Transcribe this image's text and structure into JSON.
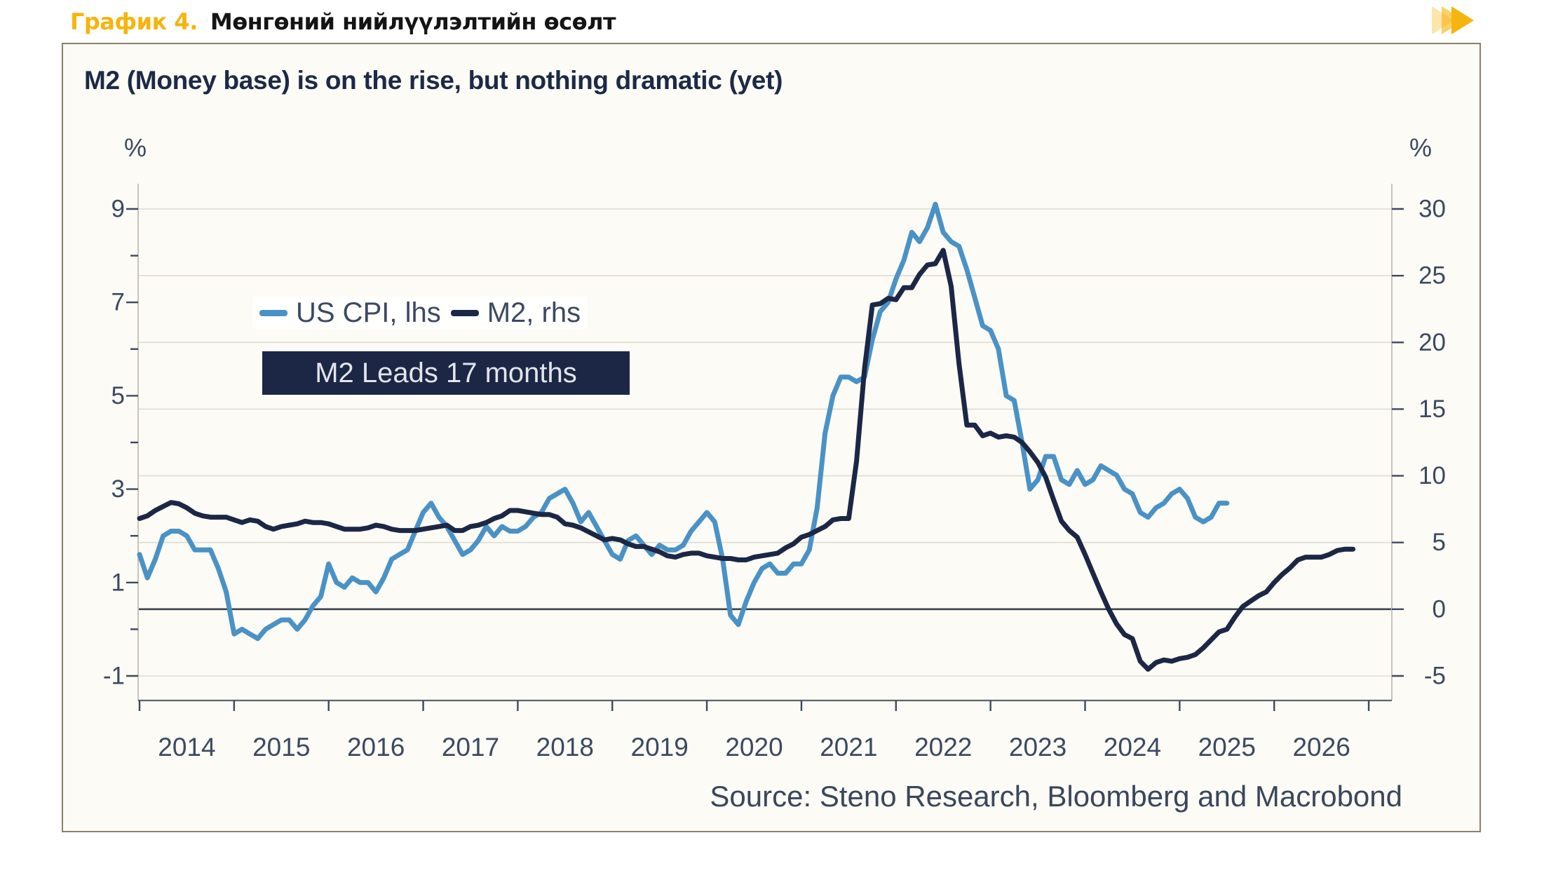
{
  "header": {
    "tag": "График 4.",
    "title": "Мөнгөний нийлүүлэлтийн өсөлт",
    "tag_color": "#F6B40E"
  },
  "panel": {
    "border_color": "#8A8069",
    "background": "#FCFBF5"
  },
  "chart": {
    "title": "M2 (Money base) is on the rise, but nothing dramatic (yet)",
    "left_axis": {
      "unit": "%",
      "labeled_ticks": [
        9,
        7,
        5,
        3,
        1,
        -1
      ],
      "minor_ticks": [
        8,
        6,
        4,
        2,
        0
      ]
    },
    "right_axis": {
      "unit": "%",
      "labeled_ticks": [
        30,
        25,
        20,
        15,
        10,
        5,
        0,
        -5
      ]
    },
    "x_axis": {
      "year_labels": [
        "2014",
        "2015",
        "2016",
        "2017",
        "2018",
        "2019",
        "2020",
        "2021",
        "2022",
        "2023",
        "2024",
        "2025",
        "2026"
      ]
    },
    "legend": {
      "items": [
        {
          "label": "US CPI, lhs",
          "color": "#4A92C5"
        },
        {
          "label": "M2, rhs",
          "color": "#1C2746"
        }
      ]
    },
    "annotation": "M2 Leads 17 months",
    "source": "Source: Steno Research, Bloomberg and Macrobond",
    "colors": {
      "gridline": "#DEDCD2",
      "zero_line": "#39434D",
      "axis_line": "#C6C4BB",
      "bottom_axis_line": "#5C6570",
      "tick": "#3B4961",
      "axis_text": "#3B4961"
    }
  },
  "chart_data": {
    "type": "line",
    "title": "M2 (Money base) is on the rise, but nothing dramatic (yet)",
    "x_start": "2014-01",
    "x_end": "2027-01",
    "frequency": "monthly",
    "left_ylim": [
      -1.5,
      9.5
    ],
    "right_ylim": [
      -6.8,
      31.8
    ],
    "axis_alignment": {
      "lhs_9_equals_rhs": 30,
      "lhs_minus1_equals_rhs": -5
    },
    "grid": "horizontal, at right-axis ticks every 5",
    "legend_position": "upper-left inside plot",
    "series": [
      {
        "name": "US CPI, lhs",
        "axis": "left",
        "color": "#4A92C5",
        "start": "2014-01",
        "values": [
          1.6,
          1.1,
          1.5,
          2.0,
          2.1,
          2.1,
          2.0,
          1.7,
          1.7,
          1.7,
          1.3,
          0.8,
          -0.1,
          0.0,
          -0.1,
          -0.2,
          0.0,
          0.1,
          0.2,
          0.2,
          0.0,
          0.2,
          0.5,
          0.7,
          1.4,
          1.0,
          0.9,
          1.1,
          1.0,
          1.0,
          0.8,
          1.1,
          1.5,
          1.6,
          1.7,
          2.1,
          2.5,
          2.7,
          2.4,
          2.2,
          1.9,
          1.6,
          1.7,
          1.9,
          2.2,
          2.0,
          2.2,
          2.1,
          2.1,
          2.2,
          2.4,
          2.5,
          2.8,
          2.9,
          3.0,
          2.7,
          2.3,
          2.5,
          2.2,
          1.9,
          1.6,
          1.5,
          1.9,
          2.0,
          1.8,
          1.6,
          1.8,
          1.7,
          1.7,
          1.8,
          2.1,
          2.3,
          2.5,
          2.3,
          1.5,
          0.3,
          0.1,
          0.6,
          1.0,
          1.3,
          1.4,
          1.2,
          1.2,
          1.4,
          1.4,
          1.7,
          2.6,
          4.2,
          5.0,
          5.4,
          5.4,
          5.3,
          5.4,
          6.2,
          6.8,
          7.0,
          7.5,
          7.9,
          8.5,
          8.3,
          8.6,
          9.1,
          8.5,
          8.3,
          8.2,
          7.7,
          7.1,
          6.5,
          6.4,
          6.0,
          5.0,
          4.9,
          4.0,
          3.0,
          3.2,
          3.7,
          3.7,
          3.2,
          3.1,
          3.4,
          3.1,
          3.2,
          3.5,
          3.4,
          3.3,
          3.0,
          2.9,
          2.5,
          2.4,
          2.6,
          2.7,
          2.9,
          3.0,
          2.8,
          2.4,
          2.3,
          2.4,
          2.7,
          2.7
        ]
      },
      {
        "name": "M2, rhs",
        "axis": "right",
        "color": "#1C2746",
        "start": "2014-01",
        "note": "M2 y/y shifted forward 17 months",
        "values": [
          6.8,
          7.0,
          7.4,
          7.7,
          8.0,
          7.9,
          7.6,
          7.2,
          7.0,
          6.9,
          6.9,
          6.9,
          6.7,
          6.5,
          6.7,
          6.6,
          6.2,
          6.0,
          6.2,
          6.3,
          6.4,
          6.6,
          6.5,
          6.5,
          6.4,
          6.2,
          6.0,
          6.0,
          6.0,
          6.1,
          6.3,
          6.2,
          6.0,
          5.9,
          5.9,
          5.9,
          6.0,
          6.1,
          6.2,
          6.3,
          5.9,
          5.9,
          6.2,
          6.3,
          6.5,
          6.8,
          7.0,
          7.4,
          7.4,
          7.3,
          7.2,
          7.1,
          7.1,
          6.9,
          6.4,
          6.3,
          6.1,
          5.8,
          5.5,
          5.2,
          5.3,
          5.2,
          4.9,
          4.7,
          4.7,
          4.5,
          4.3,
          4.0,
          3.9,
          4.1,
          4.2,
          4.2,
          4.0,
          3.9,
          3.8,
          3.8,
          3.7,
          3.7,
          3.9,
          4.0,
          4.1,
          4.2,
          4.6,
          4.9,
          5.4,
          5.6,
          5.9,
          6.2,
          6.7,
          6.8,
          6.8,
          11.1,
          18.0,
          22.8,
          22.9,
          23.3,
          23.2,
          24.1,
          24.1,
          25.1,
          25.8,
          25.9,
          26.9,
          24.2,
          18.4,
          13.8,
          13.8,
          13.0,
          13.2,
          12.9,
          13.0,
          12.9,
          12.5,
          11.8,
          11.0,
          9.9,
          8.2,
          6.6,
          5.9,
          5.4,
          4.1,
          2.7,
          1.3,
          0.0,
          -1.1,
          -1.9,
          -2.2,
          -3.9,
          -4.5,
          -4.0,
          -3.8,
          -3.9,
          -3.7,
          -3.6,
          -3.4,
          -2.9,
          -2.3,
          -1.7,
          -1.5,
          -0.6,
          0.2,
          0.6,
          1.0,
          1.3,
          2.0,
          2.6,
          3.1,
          3.7,
          3.9,
          3.9,
          3.9,
          4.1,
          4.4,
          4.5,
          4.5
        ]
      }
    ]
  }
}
